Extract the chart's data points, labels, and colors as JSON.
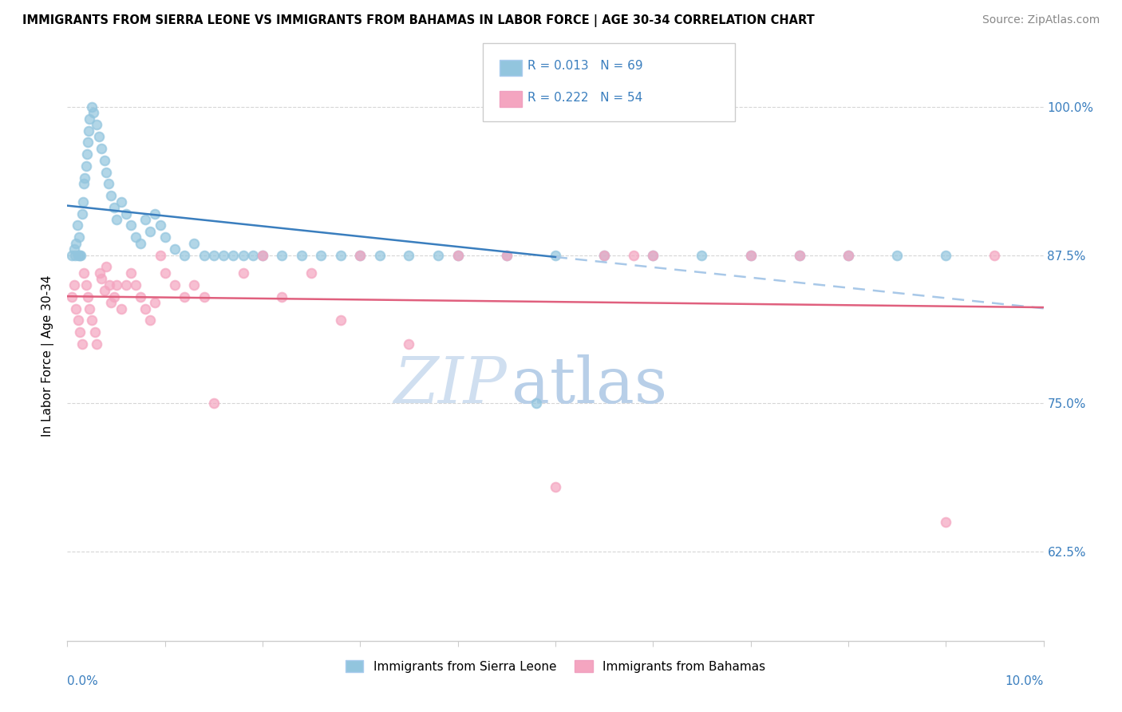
{
  "title": "IMMIGRANTS FROM SIERRA LEONE VS IMMIGRANTS FROM BAHAMAS IN LABOR FORCE | AGE 30-34 CORRELATION CHART",
  "source": "Source: ZipAtlas.com",
  "ylabel": "In Labor Force | Age 30-34",
  "legend_entries": [
    "Immigrants from Sierra Leone",
    "Immigrants from Bahamas"
  ],
  "sierra_leone_R": "R = 0.013",
  "sierra_leone_N": "N = 69",
  "bahamas_R": "R = 0.222",
  "bahamas_N": "N = 54",
  "xlim": [
    0.0,
    10.0
  ],
  "ylim": [
    55.0,
    103.0
  ],
  "yticks": [
    62.5,
    75.0,
    87.5,
    100.0
  ],
  "blue_color": "#92c5de",
  "pink_color": "#f4a5c0",
  "blue_line_color": "#3a7ebe",
  "pink_line_color": "#e0607e",
  "dashed_line_color": "#a8c8e8",
  "legend_r_color": "#3a7ebe",
  "watermark_text_color": "#d0dff0",
  "background_color": "#ffffff",
  "sierra_leone_x": [
    0.05,
    0.07,
    0.08,
    0.09,
    0.1,
    0.11,
    0.12,
    0.13,
    0.14,
    0.15,
    0.16,
    0.17,
    0.18,
    0.19,
    0.2,
    0.21,
    0.22,
    0.23,
    0.25,
    0.27,
    0.3,
    0.32,
    0.35,
    0.38,
    0.4,
    0.42,
    0.45,
    0.48,
    0.5,
    0.55,
    0.6,
    0.65,
    0.7,
    0.75,
    0.8,
    0.85,
    0.9,
    0.95,
    1.0,
    1.1,
    1.2,
    1.3,
    1.4,
    1.5,
    1.6,
    1.7,
    1.8,
    1.9,
    2.0,
    2.2,
    2.4,
    2.6,
    2.8,
    3.0,
    3.2,
    3.5,
    3.8,
    4.0,
    4.5,
    5.0,
    5.5,
    6.0,
    6.5,
    7.0,
    7.5,
    8.0,
    8.5,
    9.0,
    4.8
  ],
  "sierra_leone_y": [
    87.5,
    88.0,
    87.5,
    88.5,
    90.0,
    87.5,
    89.0,
    87.5,
    87.5,
    91.0,
    92.0,
    93.5,
    94.0,
    95.0,
    96.0,
    97.0,
    98.0,
    99.0,
    100.0,
    99.5,
    98.5,
    97.5,
    96.5,
    95.5,
    94.5,
    93.5,
    92.5,
    91.5,
    90.5,
    92.0,
    91.0,
    90.0,
    89.0,
    88.5,
    90.5,
    89.5,
    91.0,
    90.0,
    89.0,
    88.0,
    87.5,
    88.5,
    87.5,
    87.5,
    87.5,
    87.5,
    87.5,
    87.5,
    87.5,
    87.5,
    87.5,
    87.5,
    87.5,
    87.5,
    87.5,
    87.5,
    87.5,
    87.5,
    87.5,
    87.5,
    87.5,
    87.5,
    87.5,
    87.5,
    87.5,
    87.5,
    87.5,
    87.5,
    75.0
  ],
  "bahamas_x": [
    0.05,
    0.07,
    0.09,
    0.11,
    0.13,
    0.15,
    0.17,
    0.19,
    0.21,
    0.23,
    0.25,
    0.28,
    0.3,
    0.33,
    0.35,
    0.38,
    0.4,
    0.43,
    0.45,
    0.48,
    0.5,
    0.55,
    0.6,
    0.65,
    0.7,
    0.75,
    0.8,
    0.85,
    0.9,
    0.95,
    1.0,
    1.1,
    1.2,
    1.3,
    1.4,
    1.5,
    1.8,
    2.0,
    2.2,
    2.5,
    2.8,
    3.0,
    3.5,
    4.0,
    4.5,
    5.0,
    5.5,
    5.8,
    6.0,
    7.0,
    7.5,
    8.0,
    9.0,
    9.5
  ],
  "bahamas_y": [
    84.0,
    85.0,
    83.0,
    82.0,
    81.0,
    80.0,
    86.0,
    85.0,
    84.0,
    83.0,
    82.0,
    81.0,
    80.0,
    86.0,
    85.5,
    84.5,
    86.5,
    85.0,
    83.5,
    84.0,
    85.0,
    83.0,
    85.0,
    86.0,
    85.0,
    84.0,
    83.0,
    82.0,
    83.5,
    87.5,
    86.0,
    85.0,
    84.0,
    85.0,
    84.0,
    75.0,
    86.0,
    87.5,
    84.0,
    86.0,
    82.0,
    87.5,
    80.0,
    87.5,
    87.5,
    68.0,
    87.5,
    87.5,
    87.5,
    87.5,
    87.5,
    87.5,
    65.0,
    87.5
  ]
}
